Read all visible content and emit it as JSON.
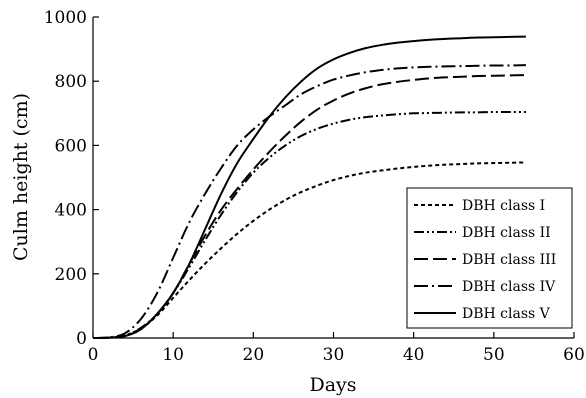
{
  "chart_data": {
    "type": "line",
    "title": "",
    "xlabel": "Days",
    "ylabel": "Culm height (cm)",
    "xlim": [
      0,
      60
    ],
    "ylim": [
      0,
      1000
    ],
    "xticks": [
      0,
      10,
      20,
      30,
      40,
      50,
      60
    ],
    "yticks": [
      0,
      200,
      400,
      600,
      800,
      1000
    ],
    "grid": false,
    "legend_position": "bottom-right",
    "x": [
      0,
      2,
      4,
      6,
      8,
      10,
      12,
      14,
      16,
      18,
      20,
      22,
      24,
      26,
      28,
      30,
      32,
      34,
      36,
      38,
      40,
      42,
      44,
      46,
      48,
      50,
      52,
      54
    ],
    "series": [
      {
        "name": "DBH class I",
        "dash": "4,3",
        "values": [
          0,
          1,
          8,
          30,
          70,
          125,
          180,
          232,
          280,
          325,
          365,
          400,
          430,
          455,
          475,
          492,
          505,
          515,
          522,
          528,
          533,
          537,
          540,
          542,
          544,
          545,
          546,
          547
        ]
      },
      {
        "name": "DBH class II",
        "dash": "10,3,2,3,2,3",
        "values": [
          0,
          1,
          8,
          32,
          75,
          140,
          220,
          305,
          385,
          455,
          515,
          562,
          600,
          630,
          652,
          668,
          680,
          688,
          693,
          697,
          700,
          701,
          702,
          703,
          703,
          704,
          704,
          704
        ]
      },
      {
        "name": "DBH class III",
        "dash": "14,5",
        "values": [
          0,
          1,
          6,
          28,
          75,
          140,
          230,
          320,
          400,
          465,
          525,
          580,
          630,
          675,
          712,
          740,
          762,
          778,
          790,
          798,
          804,
          809,
          812,
          814,
          816,
          817,
          818,
          819
        ]
      },
      {
        "name": "DBH class IV",
        "dash": "14,4,2,4",
        "values": [
          0,
          2,
          15,
          60,
          140,
          250,
          360,
          450,
          530,
          600,
          650,
          690,
          725,
          760,
          785,
          805,
          818,
          828,
          835,
          840,
          843,
          845,
          846,
          847,
          848,
          849,
          849,
          850
        ]
      },
      {
        "name": "DBH class V",
        "dash": "",
        "values": [
          0,
          1,
          6,
          28,
          75,
          140,
          230,
          340,
          450,
          545,
          620,
          690,
          750,
          800,
          840,
          868,
          888,
          903,
          913,
          920,
          925,
          929,
          932,
          934,
          936,
          937,
          938,
          939
        ]
      }
    ]
  }
}
